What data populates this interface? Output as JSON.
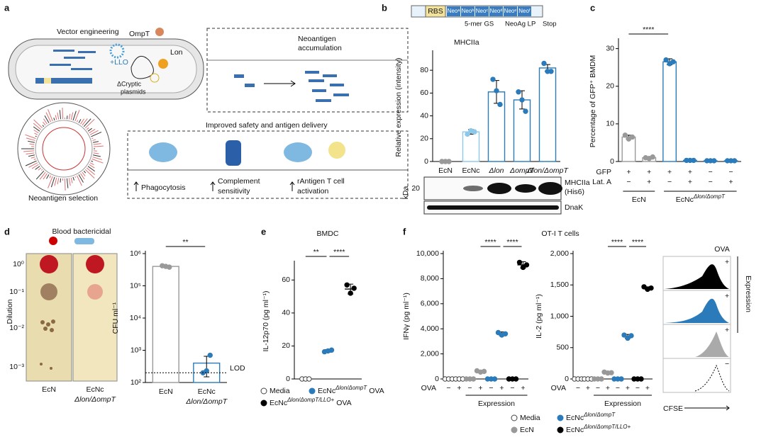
{
  "panel_labels": [
    "a",
    "b",
    "c",
    "d",
    "e",
    "f"
  ],
  "panel_a": {
    "vector_engineering": "Vector engineering",
    "ompt": "OmpT",
    "lon": "Lon",
    "llo": "+LLO",
    "cryptic": [
      "ΔCryptic",
      "plasmids"
    ],
    "accumulation": [
      "Neoantigen",
      "accumulation"
    ],
    "selection": "Neoantigen selection",
    "delivery_title": "Improved safety and antigen delivery",
    "effects": [
      [
        "Phagocytosis"
      ],
      [
        "Complement",
        "sensitivity"
      ],
      [
        "rAntigen T cell",
        "activation"
      ]
    ]
  },
  "panel_b_construct": {
    "rbs": "RBS",
    "neos": [
      "Neoᵃ",
      "Neoᵇ",
      "Neoᶜ",
      "Neoᵈ",
      "Neoᵉ",
      "Neoᶠ"
    ],
    "linker": "5-mer GS",
    "lp": "NeoAg LP",
    "stop": "Stop"
  },
  "panel_b_blot": {
    "kda": "kDa",
    "marker": "20",
    "band1": [
      "MHCIIa",
      "(His6)"
    ],
    "band2": "DnaK"
  },
  "panel_d_plate": {
    "title": "Blood bactericidal",
    "y_label": "Dilution",
    "dilutions": [
      "10⁰",
      "10⁻¹",
      "10⁻²",
      "10⁻³"
    ],
    "strains": [
      "EcN",
      "EcNc"
    ],
    "strain_sub": "Δlon/ΔompT"
  },
  "panel_f_flow": {
    "title": "OVA",
    "signs": [
      "+",
      "+",
      "+",
      "−"
    ],
    "side_label": "Expression",
    "x_label": "CFSE"
  },
  "chart_data": [
    {
      "type": "bar",
      "title": "MHCIIa",
      "y_label": "Relative expression (intensity)",
      "categories": [
        "EcN",
        "EcNc",
        "Δlon",
        "ΔompT",
        "Δlon/ΔompT"
      ],
      "values": [
        0,
        26,
        61,
        54,
        82
      ],
      "errors": [
        0,
        2,
        10,
        8,
        3
      ],
      "points": [
        [
          0,
          0,
          0
        ],
        [
          24,
          27,
          26
        ],
        [
          72,
          62,
          50
        ],
        [
          61,
          54,
          44
        ],
        [
          86,
          79,
          79
        ]
      ],
      "colors": [
        "#999999",
        "#8cc8ea",
        "#2b7bba",
        "#2b7bba",
        "#2b7bba"
      ],
      "ylim": [
        0,
        95
      ],
      "yticks": [
        0,
        20,
        40,
        60,
        80
      ]
    },
    {
      "type": "bar",
      "y_label": "Percentage of GFP⁺ BMDM",
      "categories": [
        null,
        null,
        null,
        null,
        null,
        null
      ],
      "values": [
        6.5,
        1,
        26.5,
        0.3,
        0.2,
        0.2
      ],
      "errors": [
        0.5,
        0.2,
        0.8,
        0,
        0,
        0
      ],
      "points": [
        [
          7,
          6,
          6.5
        ],
        [
          1,
          0.8,
          1.2
        ],
        [
          27,
          26,
          26.5
        ],
        [
          0.3,
          0.3,
          0.3
        ],
        [
          0.2,
          0.2,
          0.2
        ],
        [
          0.2,
          0.2,
          0.2
        ]
      ],
      "colors": [
        "#999999",
        "#999999",
        "#2b7bba",
        "#2b7bba",
        "#2b7bba",
        "#2b7bba"
      ],
      "ylim": [
        0,
        32
      ],
      "yticks": [
        0,
        10,
        20,
        30
      ],
      "significance": [
        "****"
      ],
      "condition_rows": [
        {
          "name": "GFP",
          "values": [
            "+",
            "+",
            "+",
            "+",
            "−",
            "−"
          ]
        },
        {
          "name": "Lat. A",
          "values": [
            "−",
            "+",
            "−",
            "+",
            "−",
            "+"
          ]
        }
      ],
      "group_labels": [
        "EcN",
        "EcNc"
      ],
      "group_sup": [
        null,
        "Δlon/ΔompT"
      ]
    },
    {
      "type": "bar",
      "log_scale": true,
      "y_label": "CFU ml⁻¹",
      "categories": [
        "EcN",
        "EcNc"
      ],
      "category_sub": [
        null,
        "Δlon/ΔompT"
      ],
      "values": [
        400000,
        400
      ],
      "errors": [
        0,
        250
      ],
      "points": [
        [
          420000,
          400000,
          380000
        ],
        [
          200,
          230,
          700
        ]
      ],
      "colors": [
        "#999999",
        "#2b7bba"
      ],
      "ylim": [
        100,
        1000000
      ],
      "yticks": [
        {
          "value": 100,
          "label": "10²"
        },
        {
          "value": 1000,
          "label": "10³"
        },
        {
          "value": 10000,
          "label": "10⁴"
        },
        {
          "value": 100000,
          "label": "10⁵"
        },
        {
          "value": 1000000,
          "label": "10⁶"
        }
      ],
      "lod": {
        "value": 200,
        "label": "LOD"
      },
      "significance": [
        "**"
      ]
    },
    {
      "type": "dot",
      "title": "BMDC",
      "y_label": "IL-12p70 (pg ml⁻¹)",
      "categories": [
        null,
        null,
        null
      ],
      "values": [
        0,
        17,
        54.5
      ],
      "errors": [
        0,
        0.8,
        3
      ],
      "points": [
        [
          0,
          0,
          0
        ],
        [
          16.5,
          17,
          17.5
        ],
        [
          57,
          52,
          55
        ]
      ],
      "colors": [
        "#ffffff",
        "#2b7bba",
        "#000000"
      ],
      "ylim": [
        0,
        70
      ],
      "yticks": [
        0,
        20,
        40,
        60
      ],
      "significance": [
        "**",
        "****"
      ],
      "legend": [
        {
          "name": "Media",
          "color": "#ffffff"
        },
        {
          "name": "EcNc",
          "sup": "Δlon/ΔompT",
          "suffix": "OVA",
          "color": "#2b7bba"
        },
        {
          "name": "EcNc",
          "sup": "Δlon/ΔompT/LLO+",
          "suffix": "OVA",
          "color": "#000000"
        }
      ]
    },
    {
      "type": "dot",
      "title": "OT-I T cells",
      "y_label": "IFNγ (pg ml⁻¹)",
      "categories": [
        null,
        null,
        null,
        null,
        null,
        null,
        null,
        null
      ],
      "values": [
        0,
        0,
        0,
        600,
        0,
        3600,
        0,
        9100
      ],
      "errors": [
        0,
        0,
        0,
        60,
        0,
        150,
        0,
        250
      ],
      "points": [
        [
          0,
          0,
          0
        ],
        [
          0,
          0,
          0
        ],
        [
          0,
          0,
          0
        ],
        [
          650,
          550,
          600
        ],
        [
          0,
          0,
          0
        ],
        [
          3700,
          3500,
          3600
        ],
        [
          0,
          0,
          0
        ],
        [
          9300,
          8900,
          9100
        ]
      ],
      "colors": [
        "#ffffff",
        "#ffffff",
        "#999999",
        "#999999",
        "#2b7bba",
        "#2b7bba",
        "#000000",
        "#000000"
      ],
      "ylim": [
        0,
        10000
      ],
      "yticks": [
        0,
        {
          "value": 2000,
          "label": "2,000"
        },
        {
          "value": 4000,
          "label": "4,000"
        },
        {
          "value": 6000,
          "label": "6,000"
        },
        {
          "value": 8000,
          "label": "8,000"
        },
        {
          "value": 10000,
          "label": "10,000"
        }
      ],
      "significance": [
        "****",
        "****"
      ],
      "x_row": {
        "name": "OVA",
        "values": [
          "−",
          "+",
          "−",
          "+",
          "−",
          "+",
          "−",
          "+"
        ]
      },
      "x_group": "Expression",
      "legend": [
        {
          "name": "Media",
          "color": "#ffffff"
        },
        {
          "name": "EcN",
          "color": "#999999"
        },
        {
          "name": "EcNc",
          "sup": "Δlon/ΔompT",
          "color": "#2b7bba"
        },
        {
          "name": "EcNc",
          "sup": "Δlon/ΔompT/LLO+",
          "color": "#000000"
        }
      ]
    },
    {
      "type": "dot",
      "y_label": "IL-2 (pg ml⁻¹)",
      "categories": [
        null,
        null,
        null,
        null,
        null,
        null,
        null,
        null
      ],
      "values": [
        0,
        0,
        0,
        100,
        0,
        680,
        0,
        1450
      ],
      "errors": [
        0,
        0,
        0,
        10,
        0,
        30,
        0,
        20
      ],
      "points": [
        [
          0,
          0,
          0
        ],
        [
          0,
          0,
          0
        ],
        [
          0,
          0,
          0
        ],
        [
          110,
          95,
          100
        ],
        [
          0,
          0,
          0
        ],
        [
          700,
          650,
          690
        ],
        [
          0,
          0,
          0
        ],
        [
          1470,
          1430,
          1450
        ]
      ],
      "colors": [
        "#ffffff",
        "#ffffff",
        "#999999",
        "#999999",
        "#2b7bba",
        "#2b7bba",
        "#000000",
        "#000000"
      ],
      "ylim": [
        0,
        2000
      ],
      "yticks": [
        0,
        500,
        {
          "value": 1000,
          "label": "1,000"
        },
        {
          "value": 1500,
          "label": "1,500"
        },
        {
          "value": 2000,
          "label": "2,000"
        }
      ],
      "significance": [
        "****",
        "****"
      ],
      "x_row": {
        "name": "OVA",
        "values": [
          "−",
          "+",
          "−",
          "+",
          "−",
          "+",
          "−",
          "+"
        ]
      },
      "x_group": "Expression"
    }
  ]
}
